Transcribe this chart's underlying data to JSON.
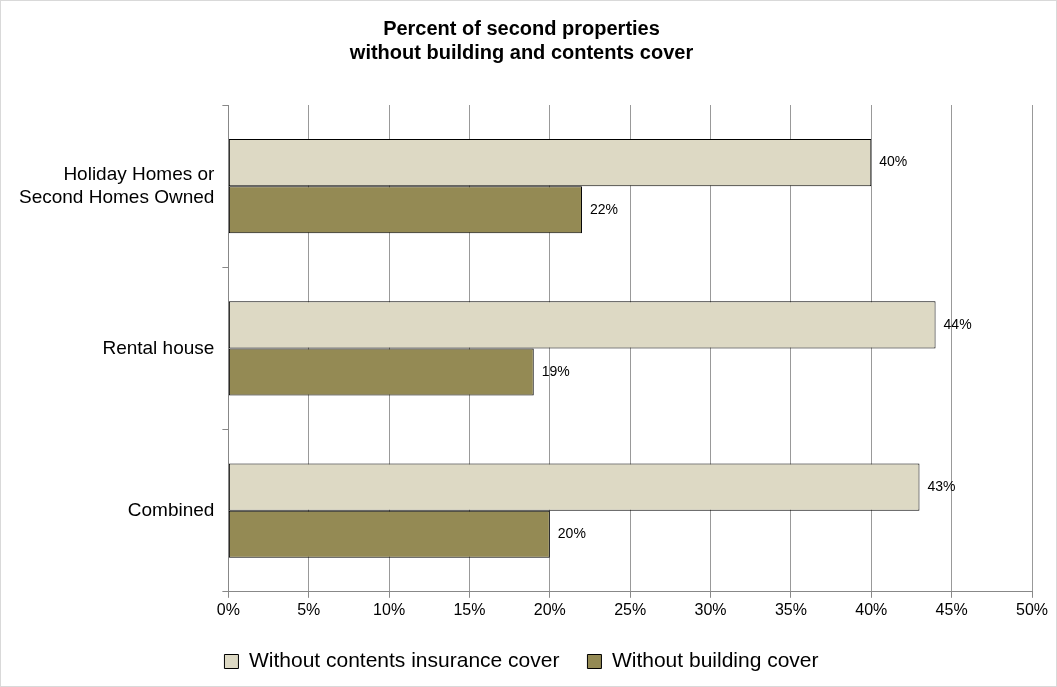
{
  "chart_data": {
    "type": "bar",
    "orientation": "horizontal",
    "title": "Percent of second properties\nwithout building and contents cover",
    "categories": [
      "Holiday Homes or\nSecond Homes Owned",
      "Rental house",
      "Combined"
    ],
    "series": [
      {
        "name": "Without contents insurance cover",
        "color": "#ddd9c4",
        "values": [
          40,
          44,
          43
        ],
        "value_labels": [
          "40%",
          "44%",
          "43%"
        ]
      },
      {
        "name": "Without building cover",
        "color": "#948a54",
        "values": [
          22,
          19,
          20
        ],
        "value_labels": [
          "22%",
          "19%",
          "20%"
        ]
      }
    ],
    "xlim": [
      0,
      50
    ],
    "xticks": [
      {
        "value": 0,
        "label": "0%"
      },
      {
        "value": 5,
        "label": "5%"
      },
      {
        "value": 10,
        "label": "10%"
      },
      {
        "value": 15,
        "label": "15%"
      },
      {
        "value": 20,
        "label": "20%"
      },
      {
        "value": 25,
        "label": "25%"
      },
      {
        "value": 30,
        "label": "30%"
      },
      {
        "value": 35,
        "label": "35%"
      },
      {
        "value": 40,
        "label": "40%"
      },
      {
        "value": 45,
        "label": "45%"
      },
      {
        "value": 50,
        "label": "50%"
      }
    ],
    "grid": "x",
    "legend": "bottom"
  }
}
